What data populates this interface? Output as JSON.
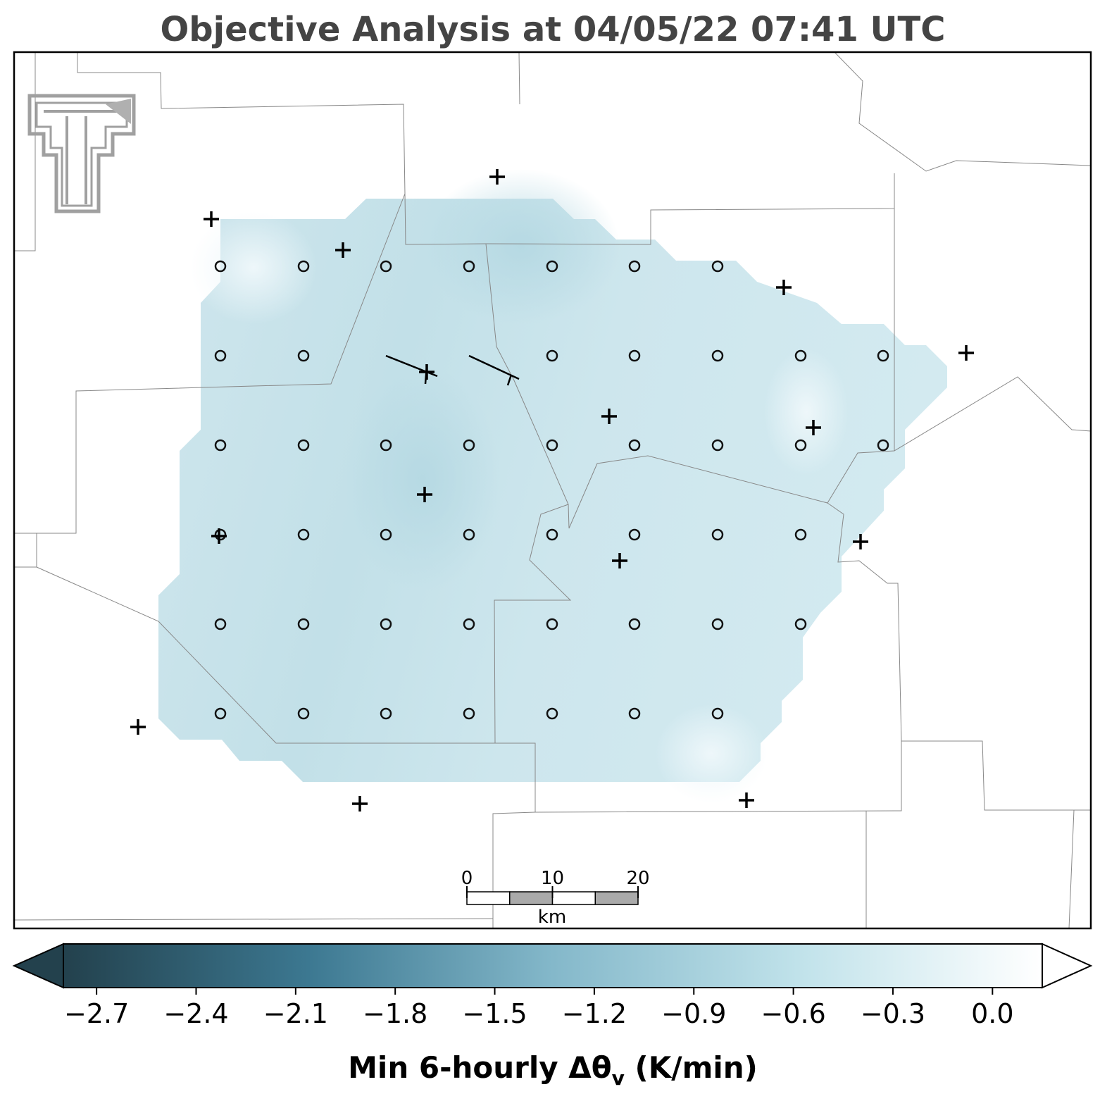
{
  "title": "Objective Analysis at 04/05/22 07:41 UTC",
  "map": {
    "scale_bar": {
      "ticks": [
        0,
        10,
        20
      ],
      "unit": "km"
    }
  },
  "colorbar": {
    "clim": [
      -2.8,
      0.15
    ],
    "colormap": [
      "#23414d",
      "#3c7891",
      "#84b8ca",
      "#c0e2ea",
      "#ffffff"
    ],
    "ticks": [
      {
        "value": -2.7,
        "label": "−2.7"
      },
      {
        "value": -2.4,
        "label": "−2.4"
      },
      {
        "value": -2.1,
        "label": "−2.1"
      },
      {
        "value": -1.8,
        "label": "−1.8"
      },
      {
        "value": -1.5,
        "label": "−1.5"
      },
      {
        "value": -1.2,
        "label": "−1.2"
      },
      {
        "value": -0.9,
        "label": "−0.9"
      },
      {
        "value": -0.6,
        "label": "−0.6"
      },
      {
        "value": -0.3,
        "label": "−0.3"
      },
      {
        "value": 0,
        "label": "0.0"
      }
    ],
    "label": "Min 6-hourly Δθ",
    "label_sub": "v",
    "label_units": "(K/min)"
  }
}
